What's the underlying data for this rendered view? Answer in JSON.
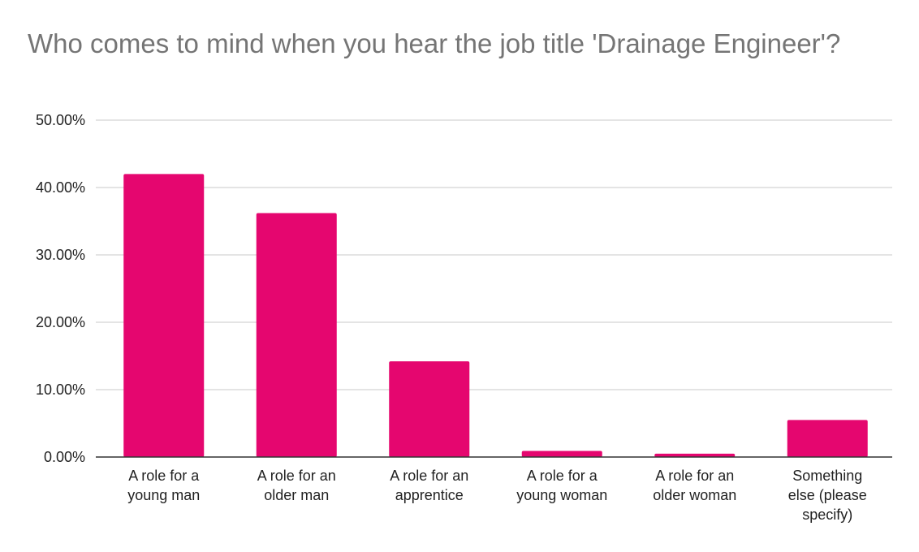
{
  "chart_data": {
    "type": "bar",
    "title": "Who comes to mind when you hear the job title 'Drainage Engineer'?",
    "xlabel": "",
    "ylabel": "",
    "ylim": [
      0,
      0.5
    ],
    "y_ticks": [
      "0.00%",
      "10.00%",
      "20.00%",
      "30.00%",
      "40.00%",
      "50.00%"
    ],
    "grid": true,
    "bar_color": "#e5066f",
    "categories": [
      [
        "A role for a",
        "young man"
      ],
      [
        "A role for an",
        "older man"
      ],
      [
        "A role for an",
        "apprentice"
      ],
      [
        "A role for a",
        "young woman"
      ],
      [
        "A role for an",
        "older woman"
      ],
      [
        "Something",
        "else (please",
        "specify)"
      ]
    ],
    "values": [
      0.42,
      0.362,
      0.142,
      0.009,
      0.005,
      0.055
    ]
  }
}
